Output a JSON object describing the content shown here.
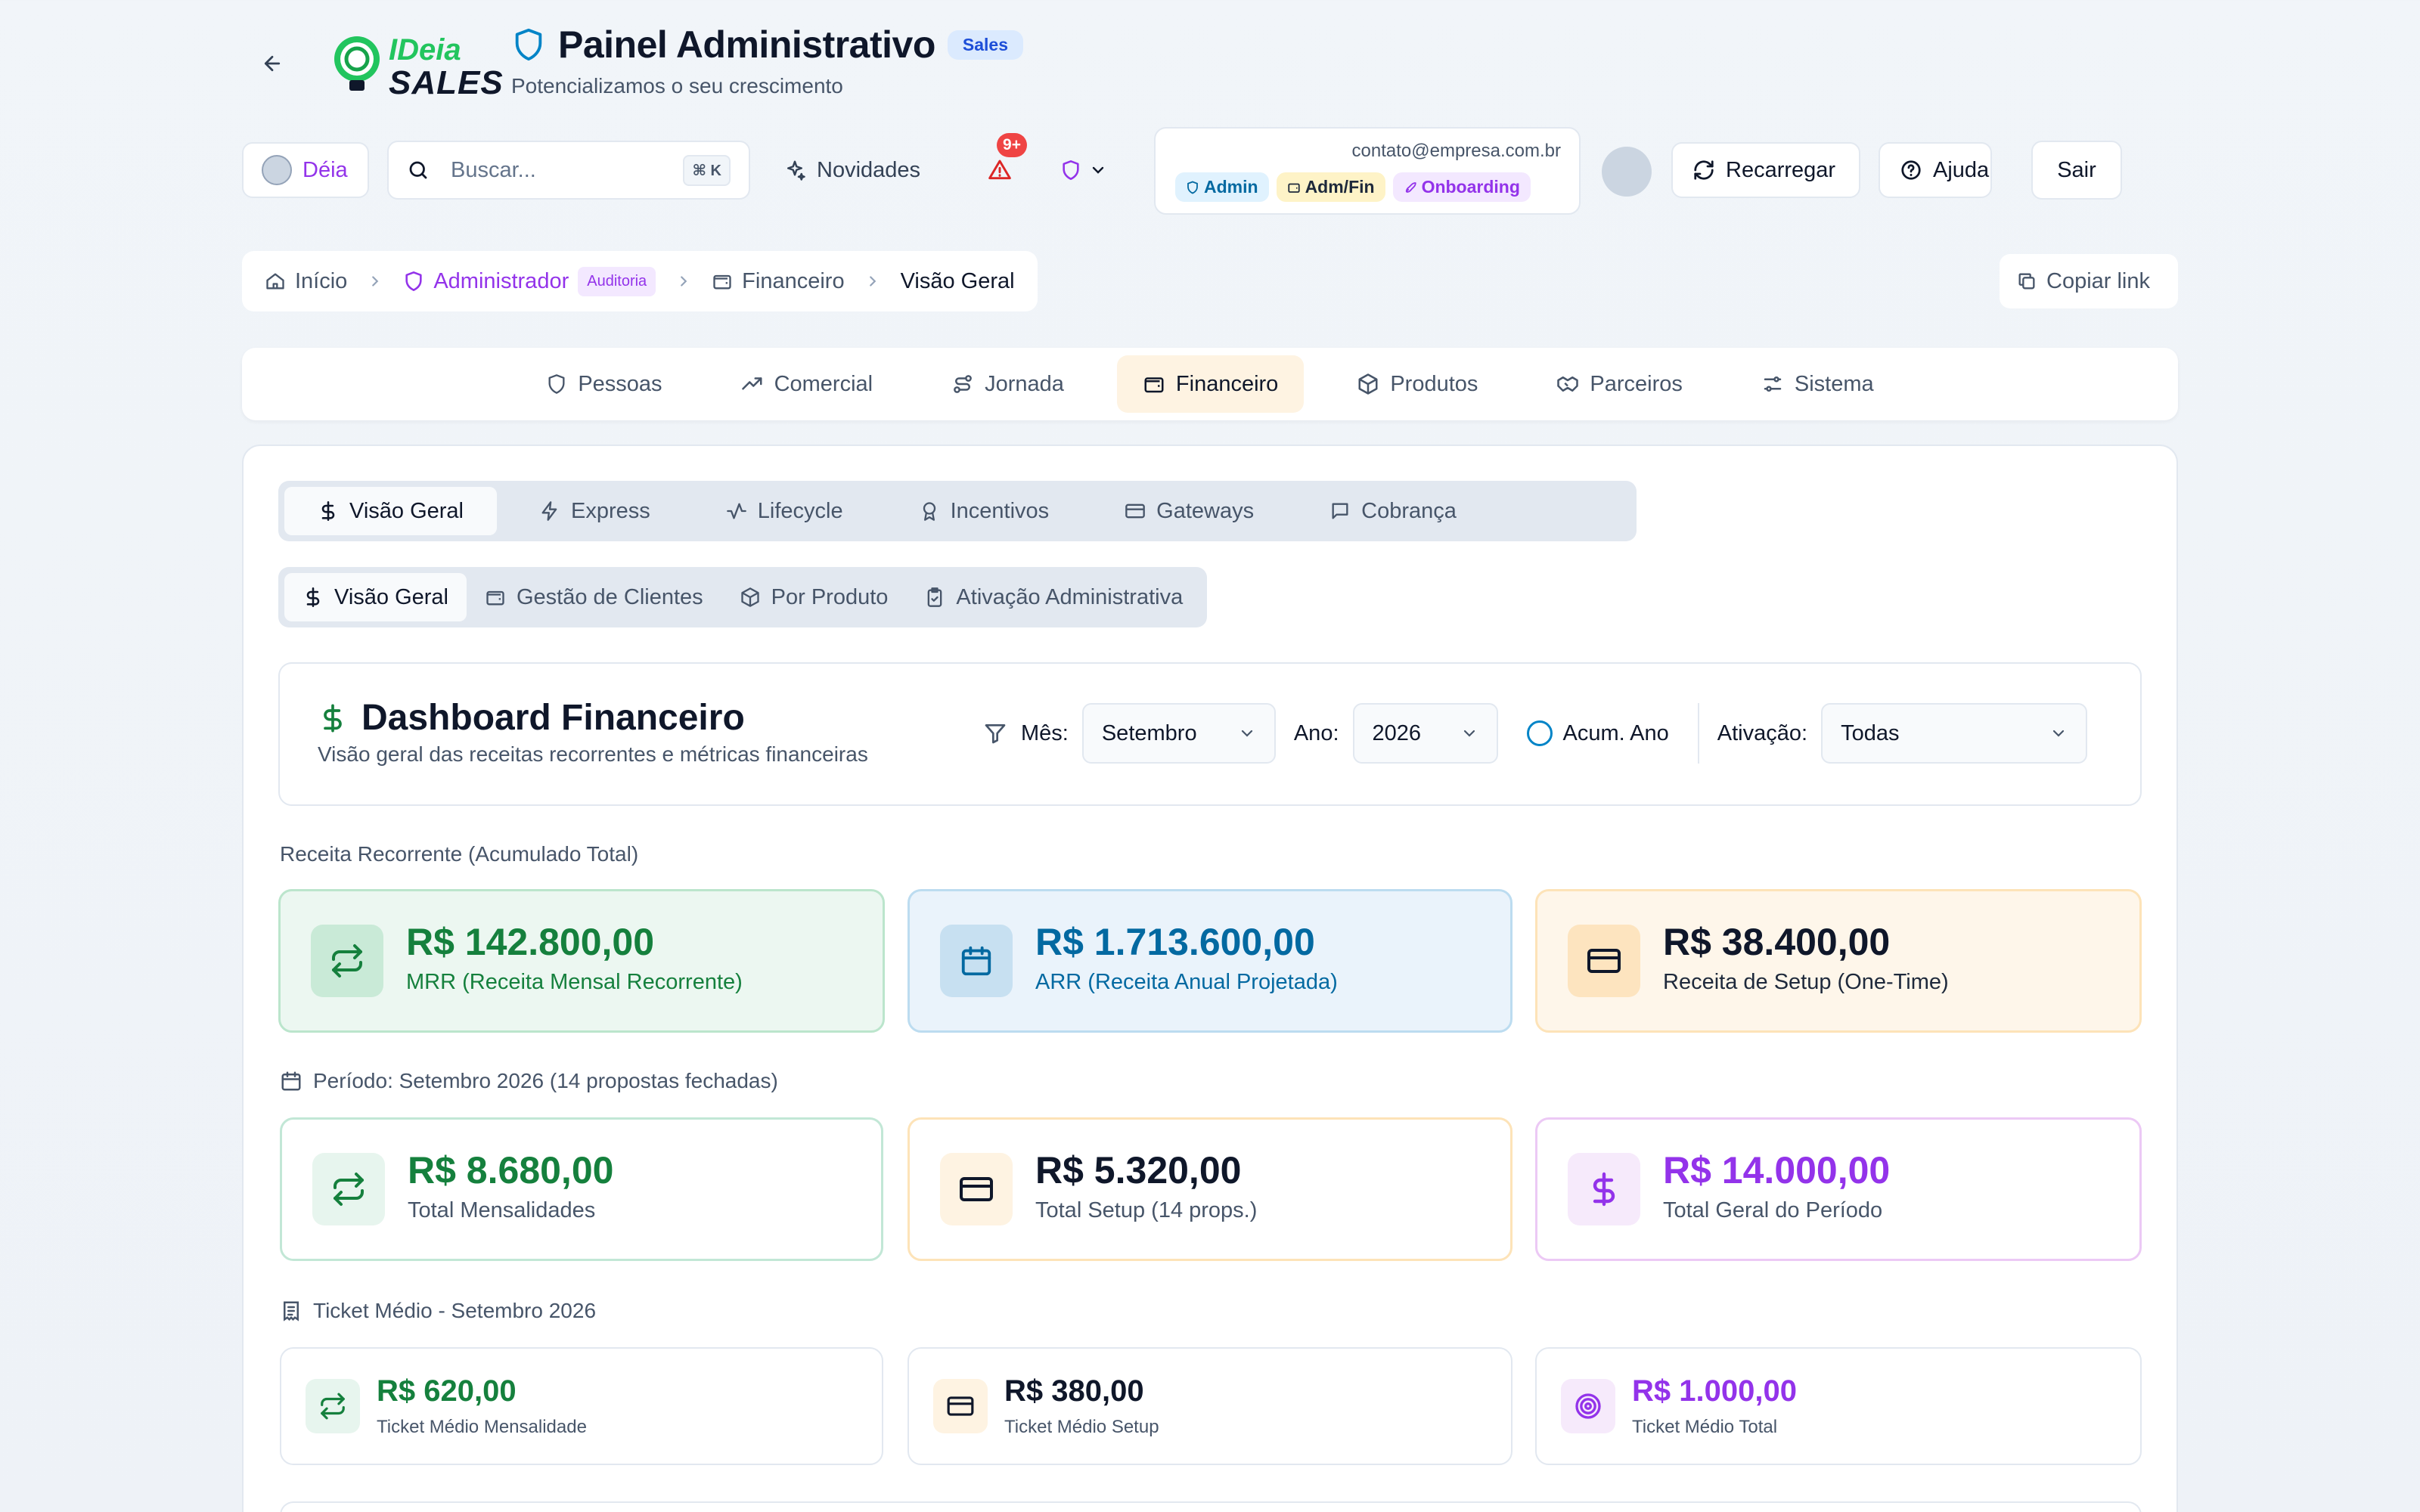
{
  "header": {
    "logo_line1": "IDeia",
    "logo_line2": "SALES",
    "title": "Painel Administrativo",
    "env_badge": "Sales",
    "subtitle": "Potencializamos o seu crescimento"
  },
  "toolbar": {
    "deia_label": "Déia",
    "search_placeholder": "Buscar...",
    "search_shortcut": "⌘ K",
    "novidades_label": "Novidades",
    "alert_count": "9+",
    "user_email": "contato@empresa.com.br",
    "user_tags": [
      "Admin",
      "Adm/Fin",
      "Onboarding"
    ],
    "reload_label": "Recarregar",
    "help_label": "Ajuda",
    "logout_label": "Sair"
  },
  "breadcrumb": {
    "home": "Início",
    "admin": "Administrador",
    "audit_badge": "Auditoria",
    "section": "Financeiro",
    "current": "Visão Geral",
    "copy_link": "Copiar link"
  },
  "main_nav": [
    {
      "label": "Pessoas",
      "icon": "shield-icon"
    },
    {
      "label": "Comercial",
      "icon": "trending-up-icon"
    },
    {
      "label": "Jornada",
      "icon": "route-icon"
    },
    {
      "label": "Financeiro",
      "icon": "wallet-icon",
      "active": true
    },
    {
      "label": "Produtos",
      "icon": "package-icon"
    },
    {
      "label": "Parceiros",
      "icon": "handshake-icon"
    },
    {
      "label": "Sistema",
      "icon": "sliders-icon"
    }
  ],
  "sub_tabs": [
    {
      "label": "Visão Geral",
      "icon": "dollar-icon",
      "active": true
    },
    {
      "label": "Express",
      "icon": "zap-icon"
    },
    {
      "label": "Lifecycle",
      "icon": "activity-icon"
    },
    {
      "label": "Incentivos",
      "icon": "award-icon"
    },
    {
      "label": "Gateways",
      "icon": "credit-card-icon"
    },
    {
      "label": "Cobrança",
      "icon": "message-icon"
    }
  ],
  "sub_sub_tabs": [
    {
      "label": "Visão Geral",
      "icon": "dollar-icon",
      "active": true
    },
    {
      "label": "Gestão de Clientes",
      "icon": "wallet-icon"
    },
    {
      "label": "Por Produto",
      "icon": "package-icon"
    },
    {
      "label": "Ativação Administrativa",
      "icon": "clipboard-check-icon"
    }
  ],
  "dashboard": {
    "title": "Dashboard Financeiro",
    "subtitle": "Visão geral das receitas recorrentes e métricas financeiras",
    "filter_month_label": "Mês:",
    "filter_month_value": "Setembro",
    "filter_year_label": "Ano:",
    "filter_year_value": "2026",
    "accum_label": "Acum. Ano",
    "activation_label": "Ativação:",
    "activation_value": "Todas"
  },
  "recurring": {
    "section_label": "Receita Recorrente (Acumulado Total)",
    "cards": [
      {
        "value": "R$ 142.800,00",
        "label": "MRR (Receita Mensal Recorrente)",
        "icon": "repeat-icon"
      },
      {
        "value": "R$ 1.713.600,00",
        "label": "ARR (Receita Anual Projetada)",
        "icon": "calendar-icon"
      },
      {
        "value": "R$ 38.400,00",
        "label": "Receita de Setup (One-Time)",
        "icon": "credit-card-icon"
      }
    ]
  },
  "period": {
    "section_label": "Período: Setembro 2026 (14 propostas fechadas)",
    "cards": [
      {
        "value": "R$ 8.680,00",
        "label": "Total Mensalidades",
        "icon": "repeat-icon"
      },
      {
        "value": "R$ 5.320,00",
        "label": "Total Setup (14 props.)",
        "icon": "credit-card-icon"
      },
      {
        "value": "R$ 14.000,00",
        "label": "Total Geral do Período",
        "icon": "dollar-icon"
      }
    ]
  },
  "ticket": {
    "section_label": "Ticket Médio - Setembro 2026",
    "cards": [
      {
        "value": "R$ 620,00",
        "label": "Ticket Médio Mensalidade",
        "icon": "repeat-icon"
      },
      {
        "value": "R$ 380,00",
        "label": "Ticket Médio Setup",
        "icon": "credit-card-icon"
      },
      {
        "value": "R$ 1.000,00",
        "label": "Ticket Médio Total",
        "icon": "target-icon"
      }
    ]
  },
  "colors": {
    "green": "#15803d",
    "blue": "#0369a1",
    "purple": "#9333ea",
    "orange_bg": "#fef3e2"
  }
}
